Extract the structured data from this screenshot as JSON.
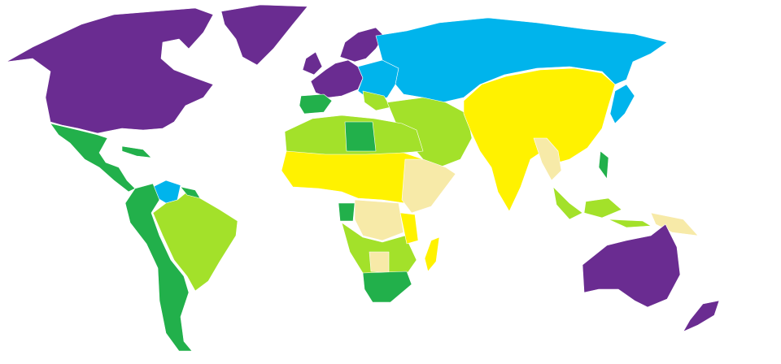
{
  "map": {
    "palette": {
      "purple": "#6a2c91",
      "blue": "#00b4ec",
      "yellow": "#fff200",
      "pale": "#f7eaa8",
      "light_green": "#a3e12a",
      "green": "#22b04b"
    },
    "background": "#ffffff"
  }
}
